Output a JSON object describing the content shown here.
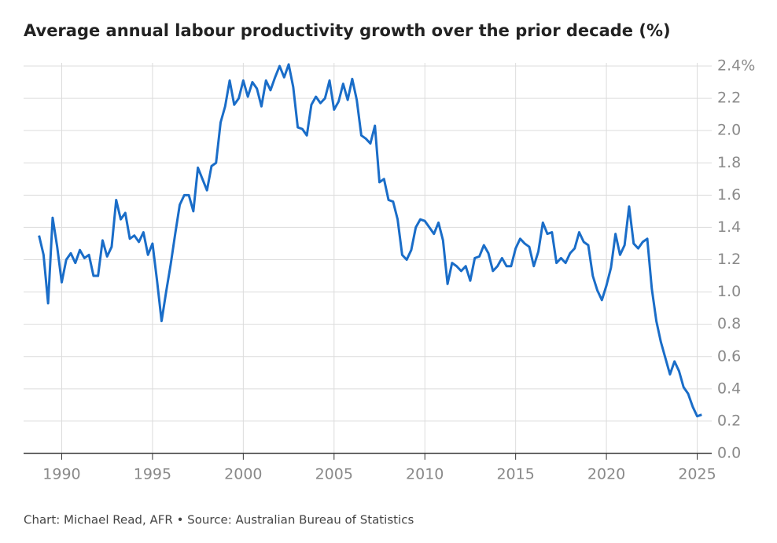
{
  "chart_data": {
    "type": "line",
    "title": "Average annual labour productivity growth over the prior decade (%)",
    "source": "Chart: Michael Read, AFR • Source: Australian Bureau of Statistics",
    "color": "#1a6dc8",
    "grid": true,
    "xlim": [
      1987.9,
      2025.8
    ],
    "xticks": [
      1990,
      1995,
      2000,
      2005,
      2010,
      2015,
      2020,
      2025
    ],
    "ylim": [
      0,
      2.4
    ],
    "yticks": [
      {
        "value": 0,
        "label": "0.0"
      },
      0.2,
      0.4,
      0.6,
      0.8,
      {
        "value": 1,
        "label": "1.0"
      },
      1.2,
      1.4,
      1.6,
      1.8,
      {
        "value": 2,
        "label": "2.0"
      },
      2.2,
      {
        "value": 2.4,
        "label": "2.4%"
      }
    ],
    "x": [
      1988.75,
      1989,
      1989.25,
      1989.5,
      1989.75,
      1990,
      1990.25,
      1990.5,
      1990.75,
      1991,
      1991.25,
      1991.5,
      1991.75,
      1992,
      1992.25,
      1992.5,
      1992.75,
      1993,
      1993.25,
      1993.5,
      1993.75,
      1994,
      1994.25,
      1994.5,
      1994.75,
      1995,
      1995.25,
      1995.5,
      1995.75,
      1996,
      1996.25,
      1996.5,
      1996.75,
      1997,
      1997.25,
      1997.5,
      1997.75,
      1998,
      1998.25,
      1998.5,
      1998.75,
      1999,
      1999.25,
      1999.5,
      1999.75,
      2000,
      2000.25,
      2000.5,
      2000.75,
      2001,
      2001.25,
      2001.5,
      2001.75,
      2002,
      2002.25,
      2002.5,
      2002.75,
      2003,
      2003.25,
      2003.5,
      2003.75,
      2004,
      2004.25,
      2004.5,
      2004.75,
      2005,
      2005.25,
      2005.5,
      2005.75,
      2006,
      2006.25,
      2006.5,
      2006.75,
      2007,
      2007.25,
      2007.5,
      2007.75,
      2008,
      2008.25,
      2008.5,
      2008.75,
      2009,
      2009.25,
      2009.5,
      2009.75,
      2010,
      2010.25,
      2010.5,
      2010.75,
      2011,
      2011.25,
      2011.5,
      2011.75,
      2012,
      2012.25,
      2012.5,
      2012.75,
      2013,
      2013.25,
      2013.5,
      2013.75,
      2014,
      2014.25,
      2014.5,
      2014.75,
      2015,
      2015.25,
      2015.5,
      2015.75,
      2016,
      2016.25,
      2016.5,
      2016.75,
      2017,
      2017.25,
      2017.5,
      2017.75,
      2018,
      2018.25,
      2018.5,
      2018.75,
      2019,
      2019.25,
      2019.5,
      2019.75,
      2020,
      2020.25,
      2020.5,
      2020.75,
      2021,
      2021.25,
      2021.5,
      2021.75,
      2022,
      2022.25,
      2022.5,
      2022.75,
      2023,
      2023.25,
      2023.5,
      2023.75,
      2024,
      2024.25,
      2024.5,
      2024.75,
      2025,
      2025.25
    ],
    "values": [
      1.35,
      1.23,
      0.93,
      1.46,
      1.28,
      1.06,
      1.2,
      1.24,
      1.18,
      1.26,
      1.21,
      1.23,
      1.1,
      1.1,
      1.32,
      1.22,
      1.28,
      1.57,
      1.45,
      1.49,
      1.33,
      1.35,
      1.31,
      1.37,
      1.23,
      1.3,
      1.07,
      0.82,
      1.0,
      1.17,
      1.36,
      1.54,
      1.6,
      1.6,
      1.5,
      1.77,
      1.7,
      1.63,
      1.78,
      1.8,
      2.05,
      2.15,
      2.31,
      2.16,
      2.2,
      2.31,
      2.21,
      2.3,
      2.26,
      2.15,
      2.31,
      2.25,
      2.33,
      2.4,
      2.33,
      2.41,
      2.27,
      2.02,
      2.01,
      1.97,
      2.16,
      2.21,
      2.17,
      2.2,
      2.31,
      2.13,
      2.18,
      2.29,
      2.19,
      2.32,
      2.19,
      1.97,
      1.95,
      1.92,
      2.03,
      1.68,
      1.7,
      1.57,
      1.56,
      1.45,
      1.23,
      1.2,
      1.26,
      1.4,
      1.45,
      1.44,
      1.4,
      1.36,
      1.43,
      1.32,
      1.05,
      1.18,
      1.16,
      1.13,
      1.16,
      1.07,
      1.21,
      1.22,
      1.29,
      1.24,
      1.13,
      1.16,
      1.21,
      1.16,
      1.16,
      1.27,
      1.33,
      1.3,
      1.28,
      1.16,
      1.25,
      1.43,
      1.36,
      1.37,
      1.18,
      1.21,
      1.18,
      1.24,
      1.27,
      1.37,
      1.31,
      1.29,
      1.1,
      1.01,
      0.95,
      1.04,
      1.15,
      1.36,
      1.23,
      1.29,
      1.53,
      1.3,
      1.27,
      1.31,
      1.33,
      1.02,
      0.82,
      0.69,
      0.59,
      0.49,
      0.57,
      0.51,
      0.41,
      0.37,
      0.29,
      0.23,
      0.24
    ]
  }
}
